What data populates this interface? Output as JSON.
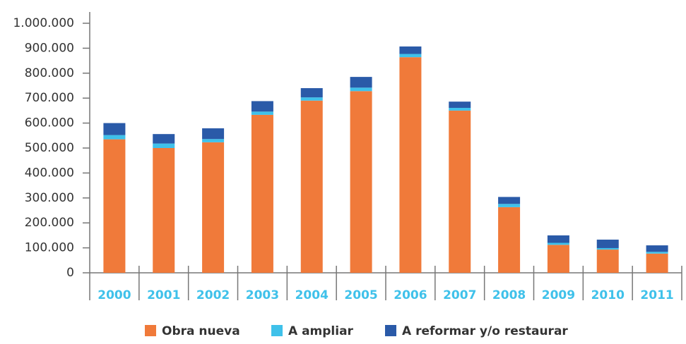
{
  "chart_data": {
    "type": "stacked_bar",
    "categories": [
      "2000",
      "2001",
      "2002",
      "2003",
      "2004",
      "2005",
      "2006",
      "2007",
      "2008",
      "2009",
      "2010",
      "2011"
    ],
    "series": [
      {
        "name": "Obra nueva",
        "color": "#f07a3a",
        "values": [
          535000,
          500000,
          523000,
          633000,
          690000,
          728000,
          864000,
          650000,
          263000,
          112000,
          93000,
          77000
        ]
      },
      {
        "name": "A ampliar",
        "color": "#3fc1ea",
        "values": [
          17000,
          18000,
          13000,
          13000,
          13000,
          14000,
          13000,
          11000,
          13000,
          8000,
          6000,
          7000
        ]
      },
      {
        "name": "A reformar y/o restaurar",
        "color": "#2a5aa8",
        "values": [
          48000,
          38000,
          43000,
          42000,
          37000,
          43000,
          30000,
          25000,
          28000,
          30000,
          34000,
          26000
        ]
      }
    ],
    "ylim": [
      0,
      1000000
    ],
    "yticks": [
      0,
      {
        "value": 100000,
        "label": "100.000"
      },
      {
        "value": 200000,
        "label": "200.000"
      },
      {
        "value": 300000,
        "label": "300.000"
      },
      {
        "value": 400000,
        "label": "400.000"
      },
      {
        "value": 500000,
        "label": "500.000"
      },
      {
        "value": 600000,
        "label": "600.000"
      },
      {
        "value": 700000,
        "label": "700.000"
      },
      {
        "value": 800000,
        "label": "800.000"
      },
      {
        "value": 900000,
        "label": "900.000"
      },
      {
        "value": 1000000,
        "label": "1.000.000"
      }
    ],
    "grid": false,
    "legend": "bottom"
  }
}
